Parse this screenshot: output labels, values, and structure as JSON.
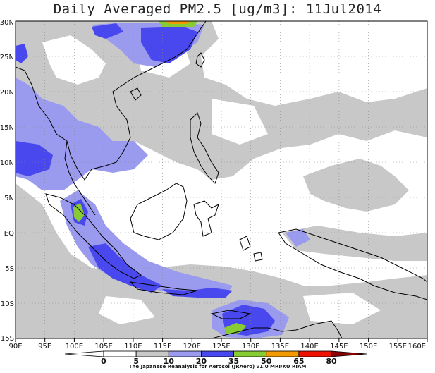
{
  "title": "Daily Averaged PM2.5 [ug/m3]: 11Jul2014",
  "map": {
    "lon_ticks": [
      "90E",
      "95E",
      "100E",
      "105E",
      "110E",
      "115E",
      "120E",
      "125E",
      "130E",
      "135E",
      "140E",
      "145E",
      "150E",
      "155E",
      "160E"
    ],
    "lat_ticks": [
      "30N",
      "25N",
      "20N",
      "15N",
      "10N",
      "5N",
      "EQ",
      "5S",
      "10S",
      "15S"
    ]
  },
  "colorbar": {
    "labels": [
      "0",
      "5",
      "10",
      "20",
      "35",
      "50",
      "65",
      "80"
    ],
    "colors": [
      "#ffffff",
      "#ffffff",
      "#c8c8c8",
      "#9a9aee",
      "#4848ee",
      "#88cc33",
      "#f29a00",
      "#ee1100",
      "#880000"
    ]
  },
  "credit": "The Japanese Reanalysis for Aerosol (JRAero) v1.0 MRI/KU RIAM"
}
